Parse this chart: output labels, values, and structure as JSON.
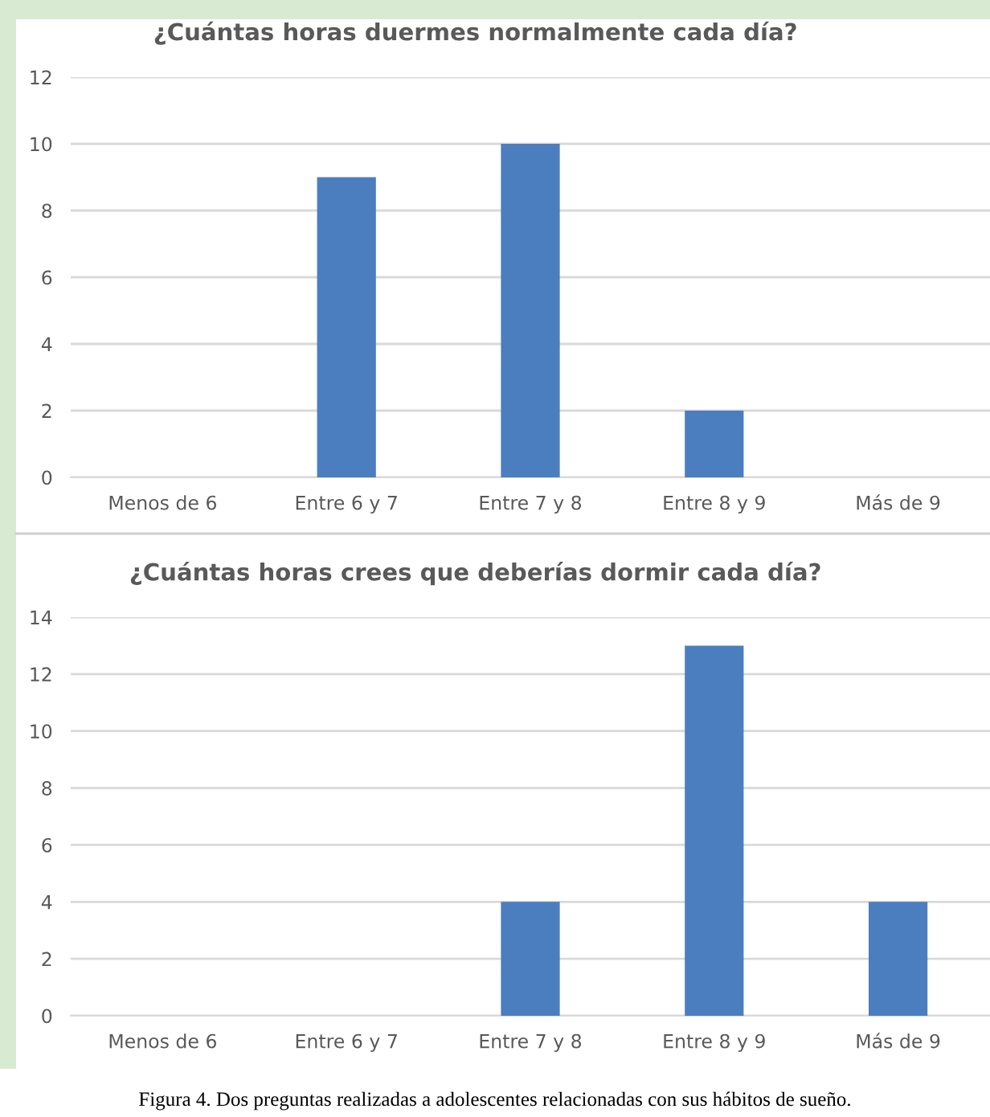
{
  "chart_data": [
    {
      "type": "bar",
      "title": "¿Cuántas horas duermes normalmente cada día?",
      "categories": [
        "Menos de 6",
        "Entre 6 y 7",
        "Entre 7 y 8",
        "Entre 8 y 9",
        "Más de 9"
      ],
      "values": [
        0,
        9,
        10,
        2,
        0
      ],
      "color": "#4a7ebf",
      "ylim": [
        0,
        12
      ],
      "yticks": [
        0,
        2,
        4,
        6,
        8,
        10,
        12
      ],
      "grid": "y",
      "legend": false
    },
    {
      "type": "bar",
      "title": "¿Cuántas horas crees que deberías dormir cada día?",
      "categories": [
        "Menos de 6",
        "Entre 6 y 7",
        "Entre 7 y 8",
        "Entre 8 y 9",
        "Más de 9"
      ],
      "values": [
        0,
        0,
        4,
        13,
        4
      ],
      "color": "#4a7ebf",
      "ylim": [
        0,
        14
      ],
      "yticks": [
        0,
        2,
        4,
        6,
        8,
        10,
        12,
        14
      ],
      "grid": "y",
      "legend": false,
      "annotations": [
        "Figura 4. Dos preguntas realizadas a adolescentes relacionadas con sus hábitos de sueño."
      ]
    }
  ]
}
